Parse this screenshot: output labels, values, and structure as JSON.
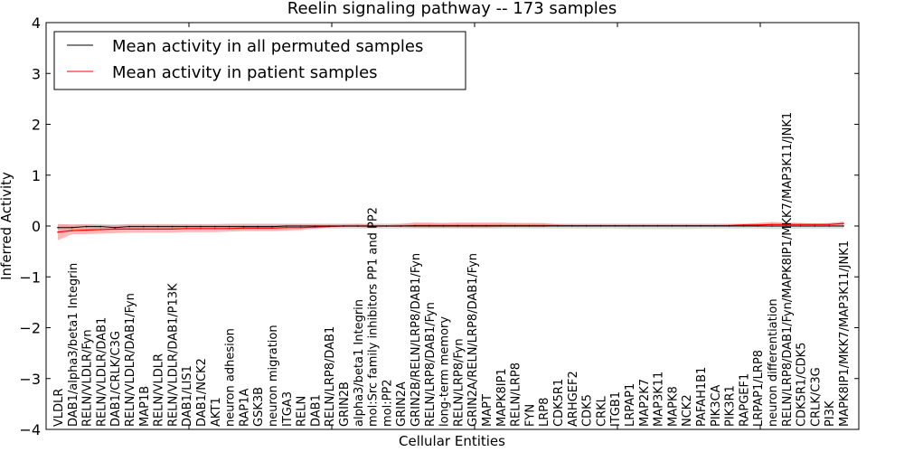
{
  "chart_data": {
    "type": "line",
    "title": "Reelin signaling pathway -- 173 samples",
    "xlabel": "Cellular Entities",
    "ylabel": "Inferred Activity",
    "ylim": [
      -4,
      4
    ],
    "yticks": [
      4,
      3,
      2,
      1,
      0,
      -1,
      -2,
      -3,
      -4
    ],
    "ytick_labels": [
      "4",
      "3",
      "2",
      "1",
      "0",
      "−1",
      "−2",
      "−3",
      "−4"
    ],
    "grid": false,
    "legend": {
      "placement": "top-left",
      "entries": [
        {
          "label": "Mean activity in all permuted samples",
          "color": "#000000"
        },
        {
          "label": "Mean activity in patient samples",
          "color": "#ff0000"
        }
      ]
    },
    "categories": [
      "VLDLR",
      "DAB1/alpha3/beta1 Integrin",
      "RELN/VLDLR/Fyn",
      "RELN/VLDLR/DAB1",
      "DAB1/CRLK/C3G",
      "RELN/VLDLR/DAB1/Fyn",
      "MAP1B",
      "RELN/VLDLR",
      "RELN/VLDLR/DAB1/P13K",
      "DAB1/LIS1",
      "DAB1/NCK2",
      "AKT1",
      "neuron adhesion",
      "RAP1A",
      "GSK3B",
      "neuron migration",
      "ITGA3",
      "RELN",
      "DAB1",
      "RELN/LRP8/DAB1",
      "GRIN2B",
      "alpha3/beta1 Integrin",
      "mol:Src family inhibitors PP1 and PP2",
      "mol:PP2",
      "GRIN2A",
      "GRIN2B/RELN/LRP8/DAB1/Fyn",
      "RELN/LRP8/DAB1/Fyn",
      "long-term memory",
      "RELN/LRP8/Fyn",
      "GRIN2A/RELN/LRP8/DAB1/Fyn",
      "MAPT",
      "MAPK8IP1",
      "RELN/LRP8",
      "FYN",
      "LRP8",
      "CDK5R1",
      "ARHGEF2",
      "CDK5",
      "CRKL",
      "ITGB1",
      "LRPAP1",
      "MAP2K7",
      "MAP3K11",
      "MAPK8",
      "NCK2",
      "PAFAH1B1",
      "PIK3CA",
      "PIK3R1",
      "RAPGEF1",
      "LRPAP1/LRP8",
      "neuron differentiation",
      "RELN/LRP8/DAB1/Fyn/MAPK8IP1/MKK7/MAP3K11/JNK1",
      "CDK5R1/CDK5",
      "CRLK/C3G",
      "PI3K",
      "MAPK8IP1/MKK7/MAP3K11/JNK1"
    ],
    "series": [
      {
        "name": "Mean activity in all permuted samples",
        "color": "#000000",
        "band_color": "#bbbbbb",
        "values": [
          -0.03,
          -0.03,
          -0.01,
          -0.01,
          -0.03,
          -0.01,
          -0.01,
          -0.01,
          -0.01,
          -0.01,
          -0.01,
          -0.01,
          -0.01,
          -0.01,
          -0.01,
          -0.01,
          0,
          0,
          0,
          0,
          0,
          0,
          0,
          0,
          0,
          0,
          0,
          0,
          0,
          0,
          0,
          0,
          0,
          0,
          0,
          0,
          0,
          0,
          0,
          0,
          0,
          0,
          0,
          0,
          0,
          0,
          0,
          0,
          0,
          0,
          0,
          0,
          0,
          0,
          0,
          0
        ],
        "lower": [
          -0.08,
          -0.08,
          -0.06,
          -0.06,
          -0.08,
          -0.06,
          -0.06,
          -0.06,
          -0.06,
          -0.06,
          -0.06,
          -0.06,
          -0.06,
          -0.06,
          -0.06,
          -0.06,
          -0.05,
          -0.05,
          -0.05,
          -0.05,
          -0.05,
          -0.05,
          -0.05,
          -0.05,
          -0.05,
          -0.05,
          -0.05,
          -0.05,
          -0.05,
          -0.05,
          -0.05,
          -0.05,
          -0.05,
          -0.05,
          -0.05,
          -0.05,
          -0.05,
          -0.05,
          -0.05,
          -0.05,
          -0.06,
          -0.06,
          -0.06,
          -0.06,
          -0.06,
          -0.05,
          -0.05,
          -0.05,
          -0.05,
          -0.05,
          -0.06,
          -0.06,
          -0.05,
          -0.05,
          -0.05,
          -0.05
        ],
        "upper": [
          0.03,
          0.03,
          0.04,
          0.04,
          0.03,
          0.04,
          0.04,
          0.04,
          0.04,
          0.04,
          0.04,
          0.04,
          0.05,
          0.05,
          0.05,
          0.05,
          0.05,
          0.05,
          0.05,
          0.05,
          0.05,
          0.05,
          0.05,
          0.05,
          0.05,
          0.05,
          0.05,
          0.05,
          0.05,
          0.05,
          0.05,
          0.05,
          0.05,
          0.05,
          0.05,
          0.05,
          0.05,
          0.05,
          0.05,
          0.05,
          0.05,
          0.05,
          0.05,
          0.05,
          0.05,
          0.05,
          0.05,
          0.05,
          0.05,
          0.05,
          0.05,
          0.05,
          0.05,
          0.05,
          0.05,
          0.06
        ]
      },
      {
        "name": "Mean activity in patient samples",
        "color": "#ff0000",
        "band_color": "#ff7070",
        "values": [
          -0.12,
          -0.09,
          -0.08,
          -0.07,
          -0.06,
          -0.06,
          -0.06,
          -0.06,
          -0.06,
          -0.05,
          -0.05,
          -0.05,
          -0.05,
          -0.04,
          -0.04,
          -0.04,
          -0.03,
          -0.03,
          -0.02,
          -0.01,
          0,
          0,
          0,
          0,
          0,
          0.01,
          0.01,
          0.01,
          0.01,
          0.01,
          0.01,
          0.01,
          0.01,
          0.01,
          0.01,
          0.01,
          0.01,
          0.01,
          0.01,
          0.01,
          0.01,
          0.01,
          0.01,
          0.01,
          0.01,
          0.01,
          0.01,
          0.01,
          0.02,
          0.02,
          0.03,
          0.03,
          0.03,
          0.03,
          0.03,
          0.05
        ],
        "lower": [
          -0.28,
          -0.16,
          -0.16,
          -0.15,
          -0.14,
          -0.13,
          -0.13,
          -0.13,
          -0.13,
          -0.12,
          -0.12,
          -0.12,
          -0.11,
          -0.1,
          -0.1,
          -0.1,
          -0.09,
          -0.08,
          -0.05,
          -0.03,
          -0.02,
          -0.02,
          -0.04,
          -0.01,
          -0.02,
          -0.03,
          -0.03,
          -0.03,
          -0.03,
          -0.03,
          -0.03,
          -0.02,
          -0.02,
          -0.02,
          -0.02,
          0,
          0,
          0,
          0,
          0,
          0,
          0,
          0,
          0,
          0,
          0,
          0,
          0,
          0,
          0,
          0,
          0,
          0,
          0,
          0,
          0.01
        ],
        "upper": [
          0.04,
          0.03,
          0.03,
          0.02,
          0.02,
          0.03,
          0.03,
          0.03,
          0.03,
          0.03,
          0.03,
          0.03,
          0.03,
          0.03,
          0.03,
          0.03,
          0.03,
          0.03,
          0.03,
          0.03,
          0.03,
          0.04,
          0.03,
          0.02,
          0.04,
          0.07,
          0.07,
          0.06,
          0.07,
          0.07,
          0.07,
          0.07,
          0.06,
          0.06,
          0.06,
          0.03,
          0.02,
          0.02,
          0.02,
          0.02,
          0.02,
          0.02,
          0.02,
          0.02,
          0.02,
          0.02,
          0.02,
          0.03,
          0.04,
          0.06,
          0.08,
          0.07,
          0.06,
          0.05,
          0.06,
          0.09
        ]
      }
    ]
  }
}
